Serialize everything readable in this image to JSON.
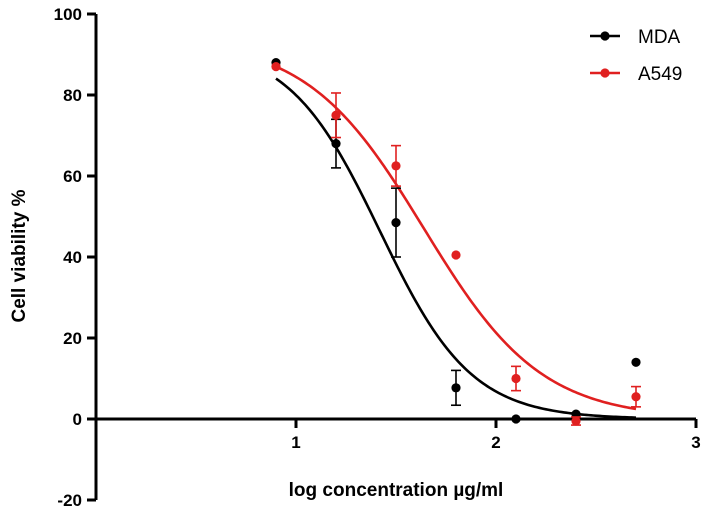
{
  "chart_data": {
    "type": "scatter",
    "title": "",
    "xlabel": "log concentration µg/ml",
    "ylabel": "Cell viability %",
    "xlim": [
      0,
      3
    ],
    "ylim": [
      -20,
      100
    ],
    "xticks": [
      1,
      2,
      3
    ],
    "xtick_labels": [
      "1",
      "2",
      "3"
    ],
    "yticks": [
      -20,
      0,
      20,
      40,
      60,
      80,
      100
    ],
    "ytick_labels": [
      "-20",
      "0",
      "20",
      "40",
      "60",
      "80",
      "100"
    ],
    "grid": false,
    "legend_position": "top-right",
    "series": [
      {
        "name": "MDA",
        "color": "#000000",
        "points": [
          {
            "x": 0.9,
            "y": 88,
            "err": 0
          },
          {
            "x": 1.2,
            "y": 68,
            "err": 6
          },
          {
            "x": 1.5,
            "y": 48.5,
            "err": 8.5
          },
          {
            "x": 1.8,
            "y": 7.7,
            "err": 4.3
          },
          {
            "x": 2.1,
            "y": 0,
            "err": 0
          },
          {
            "x": 2.4,
            "y": 1.2,
            "err": 0
          },
          {
            "x": 2.7,
            "y": 14,
            "err": 0
          }
        ],
        "fit": {
          "model": "sigmoidal",
          "top": 92.7,
          "bottom": 0,
          "logIC50": 1.42,
          "hill_slope": 1.9,
          "x_range": [
            0.9,
            2.7
          ]
        }
      },
      {
        "name": "A549",
        "color": "#e02020",
        "points": [
          {
            "x": 0.9,
            "y": 87,
            "err": 0
          },
          {
            "x": 1.2,
            "y": 75,
            "err": 5.5
          },
          {
            "x": 1.5,
            "y": 62.5,
            "err": 5
          },
          {
            "x": 1.8,
            "y": 40.5,
            "err": 0
          },
          {
            "x": 2.1,
            "y": 10,
            "err": 3
          },
          {
            "x": 2.4,
            "y": -0.5,
            "err": 1
          },
          {
            "x": 2.7,
            "y": 5.5,
            "err": 2.5
          }
        ],
        "fit": {
          "model": "sigmoidal",
          "top": 94,
          "bottom": 0,
          "logIC50": 1.64,
          "hill_slope": 1.48,
          "x_range": [
            0.9,
            2.7
          ]
        }
      }
    ]
  }
}
